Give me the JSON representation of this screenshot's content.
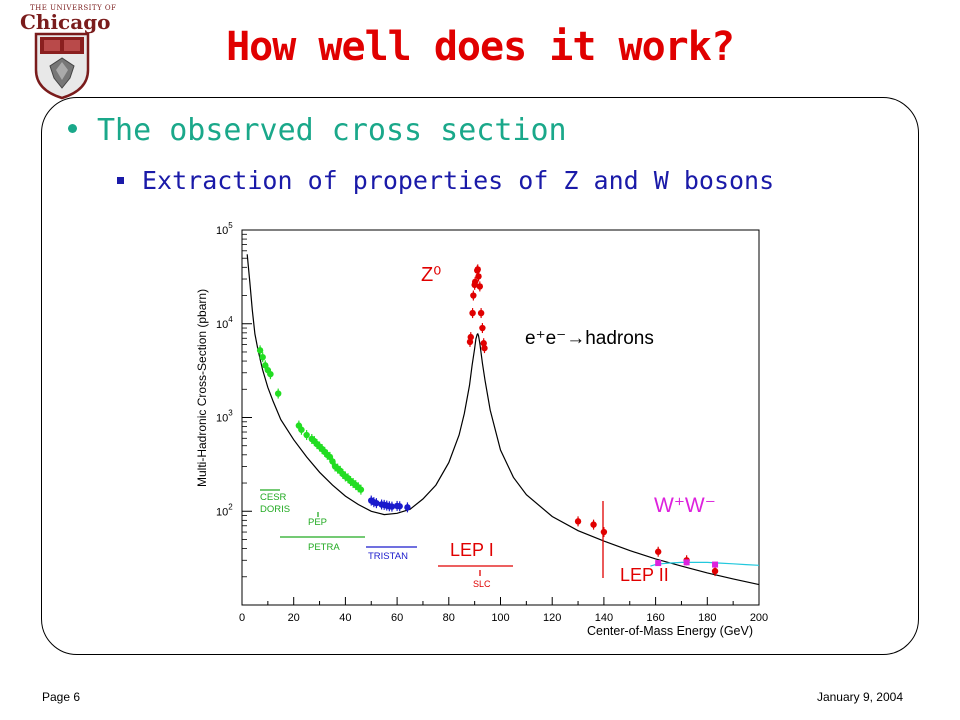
{
  "header": {
    "logo_line1": "THE UNIVERSITY OF",
    "logo_line2": "Chicago",
    "title": "How well does it work?"
  },
  "bullets": {
    "level1": "The observed cross section",
    "level2": "Extraction of properties of Z and W bosons"
  },
  "footer": {
    "page": "Page 6",
    "date": "January 9, 2004"
  },
  "colors": {
    "title": "#e00000",
    "bullet1": "#1aa88a",
    "bullet2": "#1a1aa8",
    "green_data": "#22dd22",
    "blue_data": "#1a1acc",
    "red_data": "#e00000",
    "magenta_data": "#dd22dd",
    "cyan_curve": "#22c8dd"
  },
  "chart_data": {
    "type": "scatter",
    "xlabel": "Center-of-Mass Energy (GeV)",
    "ylabel": "Multi-Hadronic Cross-Section (pbarn)",
    "xlim": [
      0,
      200
    ],
    "ylim": [
      10,
      100000
    ],
    "y_scale": "log",
    "x_ticks": [
      0,
      20,
      40,
      60,
      80,
      100,
      120,
      140,
      160,
      180,
      200
    ],
    "x_tick_labels": [
      "0",
      "20",
      "40",
      "60",
      "80",
      "100",
      "120",
      "140",
      "160",
      "180",
      "200"
    ],
    "y_ticks": [
      100,
      1000,
      10000,
      100000
    ],
    "y_tick_labels": [
      {
        "base": "10",
        "exp": "2"
      },
      {
        "base": "10",
        "exp": "3"
      },
      {
        "base": "10",
        "exp": "4"
      },
      {
        "base": "10",
        "exp": "5"
      }
    ],
    "process_label": "e⁺e⁻→hadrons",
    "annotations": {
      "z_peak": "Z⁰",
      "ww": "W⁺W⁻",
      "cesr": "CESR",
      "doris": "DORIS",
      "pep": "PEP",
      "petra": "PETRA",
      "tristan": "TRISTAN",
      "lep1": "LEP I",
      "slc": "SLC",
      "lep2": "LEP II"
    },
    "theory_curve": {
      "x": [
        2,
        3,
        4,
        5,
        6,
        7,
        8,
        10,
        12,
        15,
        20,
        25,
        30,
        35,
        40,
        45,
        50,
        55,
        60,
        65,
        70,
        75,
        80,
        84,
        86,
        88,
        89,
        90,
        90.5,
        91,
        91.2,
        91.5,
        92,
        93,
        94,
        96,
        100,
        105,
        110,
        120,
        130,
        140,
        150,
        160,
        170,
        180,
        190,
        200
      ],
      "y": [
        55000,
        28000,
        14000,
        7800,
        5600,
        4200,
        3200,
        2100,
        1500,
        950,
        580,
        380,
        260,
        190,
        145,
        118,
        100,
        92,
        95,
        105,
        135,
        190,
        330,
        650,
        1100,
        2200,
        3600,
        5400,
        6900,
        7700,
        7800,
        7500,
        6200,
        3800,
        2500,
        1200,
        450,
        230,
        150,
        88,
        62,
        48,
        38,
        31,
        26,
        22,
        19,
        16.5
      ]
    },
    "ww_curve": {
      "x": [
        158,
        160,
        162,
        165,
        170,
        175,
        180,
        185,
        190,
        195,
        200
      ],
      "y": [
        26,
        27,
        27.5,
        28,
        28.5,
        28.5,
        28.5,
        28,
        27.5,
        27,
        26.5
      ]
    },
    "series": [
      {
        "name": "PETRA",
        "color": "#22dd22",
        "x": [
          7,
          8,
          9,
          10,
          11,
          14,
          22,
          23,
          25,
          27,
          28,
          29,
          30,
          31,
          32,
          33,
          34,
          35,
          36,
          37,
          38,
          39,
          40,
          41,
          42,
          43,
          44,
          45,
          46
        ],
        "y": [
          5200,
          4400,
          3600,
          3200,
          2900,
          1800,
          820,
          740,
          650,
          590,
          560,
          520,
          490,
          460,
          430,
          400,
          380,
          340,
          300,
          285,
          270,
          250,
          235,
          225,
          210,
          200,
          190,
          180,
          170
        ]
      },
      {
        "name": "TRISTAN",
        "color": "#1a1acc",
        "x": [
          50,
          51,
          52,
          54,
          55,
          56,
          57,
          58,
          60,
          61,
          64
        ],
        "y": [
          130,
          125,
          122,
          118,
          117,
          115,
          113,
          112,
          114,
          113,
          110
        ]
      },
      {
        "name": "LEP I",
        "color": "#e00000",
        "x": [
          88.2,
          88.5,
          89.2,
          89.5,
          90,
          90.2,
          91,
          91.2,
          91.5,
          92,
          92.5,
          93,
          93.5,
          93.8
        ],
        "y": [
          6400,
          7200,
          13000,
          20000,
          26000,
          28000,
          37000,
          38000,
          32000,
          25000,
          13000,
          9000,
          6200,
          5500
        ]
      },
      {
        "name": "LEP II",
        "color": "#e00000",
        "x": [
          130,
          136,
          140,
          161,
          172,
          183
        ],
        "y": [
          78,
          72,
          60,
          37,
          30,
          23
        ]
      },
      {
        "name": "W⁺W⁻",
        "color": "#dd22dd",
        "x": [
          161,
          172,
          183
        ],
        "y": [
          28,
          28.5,
          27
        ]
      }
    ]
  }
}
